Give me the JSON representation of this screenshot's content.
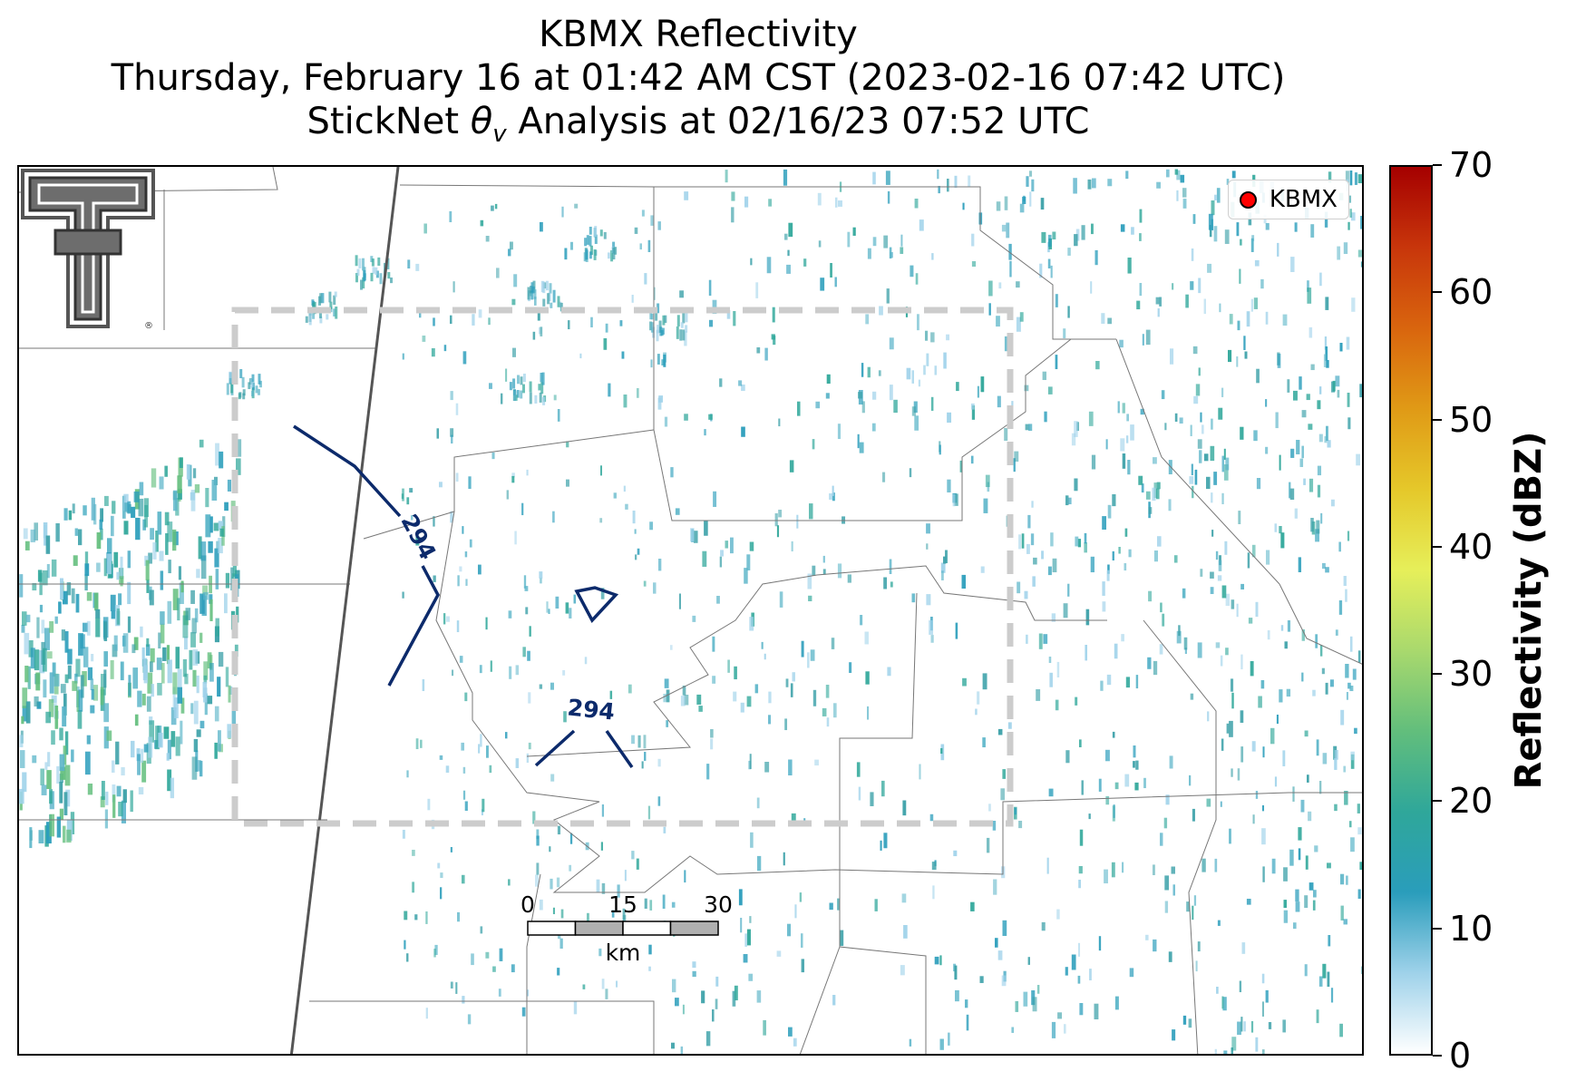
{
  "title": {
    "line1": "KBMX Reflectivity",
    "line2": "Thursday, February 16 at 01:42 AM CST (2023-02-16 07:42 UTC)",
    "line3_prefix": "StickNet ",
    "line3_suffix": " Analysis at 02/16/23 07:52 UTC"
  },
  "legend": {
    "label": "KBMX",
    "marker_color": "#ff0000"
  },
  "colorbar": {
    "label": "Reflectivity (dBZ)",
    "ticks": [
      "0",
      "10",
      "20",
      "30",
      "40",
      "50",
      "60",
      "70"
    ],
    "min": 0,
    "max": 70,
    "colors": [
      "#ffffff",
      "#9fd2ea",
      "#2a9dbb",
      "#2fa79a",
      "#62be7c",
      "#a9d96d",
      "#e6ef5a",
      "#e5c82a",
      "#e09a16",
      "#d9650e",
      "#c8360b",
      "#a50000"
    ]
  },
  "contours": [
    {
      "label": "294",
      "color": "#0c2a6b"
    },
    {
      "label": "294",
      "color": "#0c2a6b"
    }
  ],
  "scale_bar": {
    "ticks": [
      "0",
      "15",
      "30"
    ],
    "unit": "km"
  },
  "map": {
    "analysis_domain": "dashed-gray-box",
    "logo": "texas-tech-double-t-logo"
  }
}
